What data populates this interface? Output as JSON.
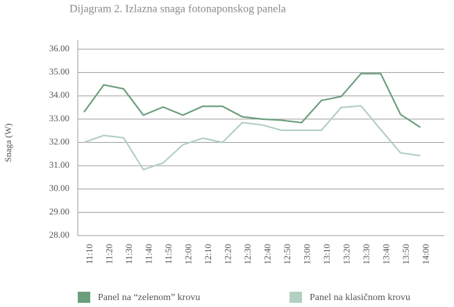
{
  "chart_data": {
    "type": "line",
    "title": "Dijagram 2. Izlazna snaga fotonaponskog panela",
    "y_label": "Snaga (W)",
    "categories": [
      "11:10",
      "11:20",
      "11:30",
      "11:40",
      "11:50",
      "12:00",
      "12:10",
      "12:20",
      "12:30",
      "12:40",
      "12:50",
      "13:00",
      "13:10",
      "13:20",
      "13:30",
      "13:40",
      "13:50",
      "14:00"
    ],
    "series": [
      {
        "name": "Panel na “zelenom” krovu",
        "color": "#6a9e7c",
        "values": [
          33.3,
          34.47,
          34.3,
          33.17,
          33.52,
          33.17,
          33.55,
          33.55,
          33.1,
          33.0,
          32.95,
          32.85,
          33.8,
          33.97,
          34.95,
          34.95,
          33.2,
          32.65
        ]
      },
      {
        "name": "Panel na klasičnom krovu",
        "color": "#b3cfbf",
        "values": [
          32.0,
          32.3,
          32.2,
          30.83,
          31.12,
          31.9,
          32.18,
          32.0,
          32.85,
          32.75,
          32.52,
          32.52,
          32.52,
          33.5,
          33.57,
          32.55,
          31.55,
          31.43
        ]
      }
    ],
    "ylim": [
      28,
      36
    ],
    "yticks": [
      {
        "value": 28,
        "label": "28.00"
      },
      {
        "value": 29,
        "label": "29.00"
      },
      {
        "value": 30,
        "label": "30.00"
      },
      {
        "value": 31,
        "label": "31.00"
      },
      {
        "value": 32,
        "label": "32.00"
      },
      {
        "value": 33,
        "label": "33.00"
      },
      {
        "value": 34,
        "label": "34.00"
      },
      {
        "value": 35,
        "label": "35.00"
      },
      {
        "value": 36,
        "label": "36.00"
      }
    ],
    "grid": true,
    "legend": "bottom"
  }
}
